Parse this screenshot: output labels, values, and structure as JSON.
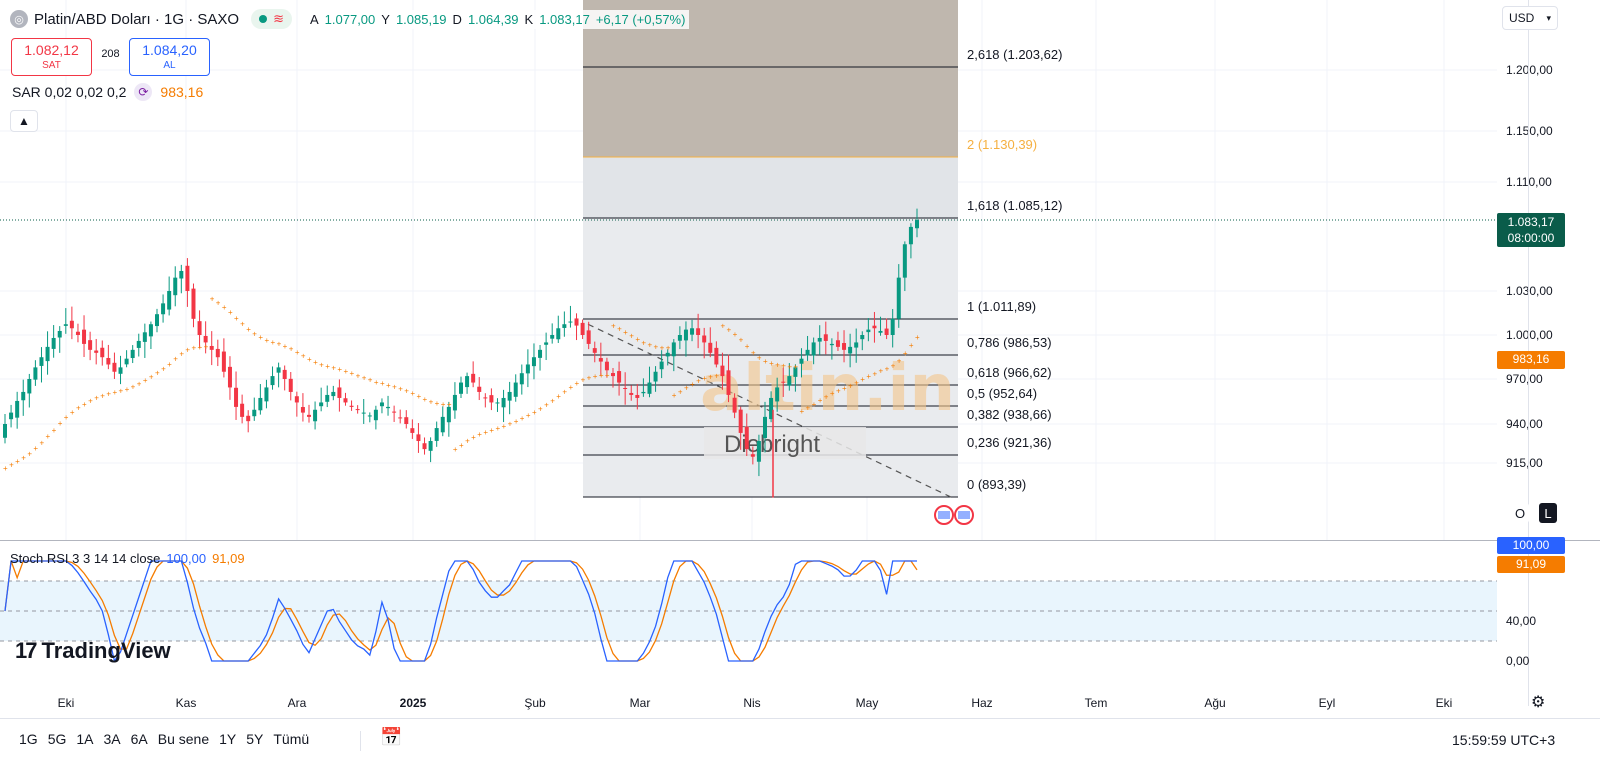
{
  "header": {
    "symbol_title": "Platin/ABD Doları · 1G · SAXO",
    "ohlc": [
      {
        "label": "A",
        "value": "1.077,00"
      },
      {
        "label": "Y",
        "value": "1.085,19"
      },
      {
        "label": "D",
        "value": "1.064,39"
      },
      {
        "label": "K",
        "value": "1.083,17"
      },
      {
        "label": "",
        "value": "+6,17 (+0,57%)"
      }
    ],
    "colors": {
      "up": "#089981",
      "down": "#f23645",
      "sar": "#f57c00",
      "k": "#2962ff",
      "d": "#f57c00"
    }
  },
  "trade": {
    "sell_price": "1.082,12",
    "sell_label": "SAT",
    "spread": "208",
    "buy_price": "1.084,20",
    "buy_label": "AL"
  },
  "sar_legend": {
    "label": "SAR 0,02 0,02 0,2",
    "value": "983,16",
    "icon": "refresh-icon"
  },
  "currency": "USD",
  "price_axis": {
    "labels": [
      {
        "text": "1.200,00",
        "value": 1200
      },
      {
        "text": "1.150,00",
        "value": 1150
      },
      {
        "text": "1.110,00",
        "value": 1110
      },
      {
        "text": "1.030,00",
        "value": 1030
      },
      {
        "text": "1.000,00",
        "value": 1000
      },
      {
        "text": "970,00",
        "value": 970
      },
      {
        "text": "940,00",
        "value": 940
      },
      {
        "text": "915,00",
        "value": 915
      }
    ],
    "last_price": "1.083,17",
    "countdown": "08:00:00",
    "sar_tag": "983,16",
    "scale_o": "O",
    "scale_l": "L"
  },
  "fibonacci": [
    {
      "label": "2,618 (1.203,62)",
      "value": 1203.62
    },
    {
      "label": "2 (1.130,39)",
      "value": 1130.39,
      "color": "#f5b041"
    },
    {
      "label": "1,618 (1.085,12)",
      "value": 1085.12
    },
    {
      "label": "1 (1.011,89)",
      "value": 1011.89
    },
    {
      "label": "0,786 (986,53)",
      "value": 986.53
    },
    {
      "label": "0,618 (966,62)",
      "value": 966.62
    },
    {
      "label": "0,5 (952,64)",
      "value": 952.64
    },
    {
      "label": "0,382 (938,66)",
      "value": 938.66
    },
    {
      "label": "0,236 (921,36)",
      "value": 921.36
    },
    {
      "label": "0 (893,39)",
      "value": 893.39
    }
  ],
  "watermark": {
    "brand": "altin.in",
    "caption": "Diebright"
  },
  "stoch": {
    "legend": "Stoch RSI 3 3 14 14 close",
    "k_value": "100,00",
    "d_value": "91,09",
    "axis_labels": [
      {
        "text": "40,00",
        "value": 40
      },
      {
        "text": "0,00",
        "value": 0
      }
    ],
    "upper_band": 80,
    "lower_band": 20
  },
  "time_axis": [
    {
      "text": "Eki",
      "bold": false
    },
    {
      "text": "Kas",
      "bold": false
    },
    {
      "text": "Ara",
      "bold": false
    },
    {
      "text": "2025",
      "bold": true
    },
    {
      "text": "Şub",
      "bold": false
    },
    {
      "text": "Mar",
      "bold": false
    },
    {
      "text": "Nis",
      "bold": false
    },
    {
      "text": "May",
      "bold": false
    },
    {
      "text": "Haz",
      "bold": false
    },
    {
      "text": "Tem",
      "bold": false
    },
    {
      "text": "Ağu",
      "bold": false
    },
    {
      "text": "Eyl",
      "bold": false
    },
    {
      "text": "Eki",
      "bold": false
    }
  ],
  "logo": "TradingView",
  "bottom_bar": {
    "ranges": [
      "1G",
      "5G",
      "1A",
      "3A",
      "6A",
      "Bu sene",
      "1Y",
      "5Y",
      "Tümü"
    ],
    "clock": "15:59:59 UTC+3"
  },
  "chart_data": {
    "type": "candlestick",
    "price_series": [
      940,
      948,
      956,
      962,
      970,
      978,
      985,
      992,
      998,
      1003,
      1008,
      1005,
      1000,
      994,
      990,
      988,
      985,
      980,
      975,
      978,
      984,
      990,
      996,
      1002,
      1008,
      1015,
      1022,
      1030,
      1040,
      1045,
      1030,
      1012,
      1000,
      995,
      990,
      985,
      975,
      965,
      952,
      945,
      942,
      950,
      958,
      965,
      972,
      978,
      970,
      962,
      955,
      948,
      945,
      950,
      955,
      960,
      962,
      958,
      955,
      952,
      950,
      948,
      946,
      950,
      955,
      952,
      948,
      944,
      940,
      935,
      930,
      925,
      930,
      938,
      945,
      952,
      960,
      968,
      972,
      968,
      962,
      958,
      955,
      955,
      958,
      962,
      968,
      974,
      980,
      985,
      990,
      995,
      1000,
      1005,
      1008,
      1010,
      1007,
      1000,
      994,
      988,
      982,
      976,
      972,
      968,
      964,
      960,
      958,
      962,
      968,
      975,
      982,
      988,
      995,
      1000,
      1004,
      1005,
      1000,
      995,
      988,
      980,
      972,
      960,
      948,
      935,
      925,
      920,
      930,
      945,
      958,
      965,
      968,
      972,
      978,
      984,
      990,
      995,
      998,
      996,
      994,
      992,
      990,
      992,
      995,
      1000,
      1004,
      1005,
      1003,
      1000,
      1012,
      1040,
      1065,
      1078,
      1083.17
    ]
  }
}
